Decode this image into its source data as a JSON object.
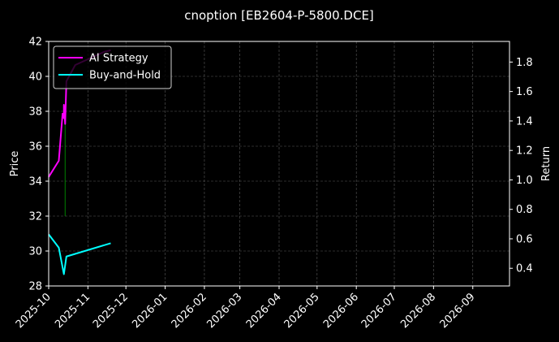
{
  "chart_data": {
    "type": "line",
    "title": "cnoption [EB2604-P-5800.DCE]",
    "xlabel": "",
    "ylabel": "Price",
    "y2label": "Return",
    "background": "#000000",
    "foreground": "#ffffff",
    "grid": true,
    "legend_position": "top-left",
    "xlim": [
      "2025-10-01",
      "2026-09-30"
    ],
    "ylim": [
      28,
      42
    ],
    "y2lim": [
      0.28,
      1.94
    ],
    "x_tick_labels": [
      "2025-10",
      "2025-11",
      "2025-12",
      "2026-01",
      "2026-02",
      "2026-03",
      "2026-04",
      "2026-05",
      "2026-06",
      "2026-07",
      "2026-08",
      "2026-09"
    ],
    "y_tick_labels": [
      "28",
      "30",
      "32",
      "34",
      "36",
      "38",
      "40",
      "42"
    ],
    "y2_tick_labels": [
      "0.4",
      "0.6",
      "0.8",
      "1.0",
      "1.2",
      "1.4",
      "1.6",
      "1.8"
    ],
    "price_series": {
      "color": "#008000",
      "x": [
        "2025-10-14",
        "2025-10-14"
      ],
      "y": [
        32.0,
        38.4
      ]
    },
    "series": [
      {
        "name": "AI Strategy",
        "axis": "right",
        "color": "#ff00ff",
        "x": [
          "2025-10-01",
          "2025-10-09",
          "2025-10-12",
          "2025-10-13",
          "2025-10-13",
          "2025-10-14",
          "2025-10-15",
          "2025-10-22",
          "2025-11-14",
          "2025-11-19"
        ],
        "y": [
          1.02,
          1.13,
          1.45,
          1.42,
          1.51,
          1.38,
          1.67,
          1.78,
          1.87,
          1.88
        ]
      },
      {
        "name": "Buy-and-Hold",
        "axis": "right",
        "color": "#00ffff",
        "x": [
          "2025-10-01",
          "2025-10-09",
          "2025-10-13",
          "2025-10-15",
          "2025-11-19"
        ],
        "y": [
          0.63,
          0.54,
          0.36,
          0.48,
          0.57
        ]
      }
    ]
  }
}
